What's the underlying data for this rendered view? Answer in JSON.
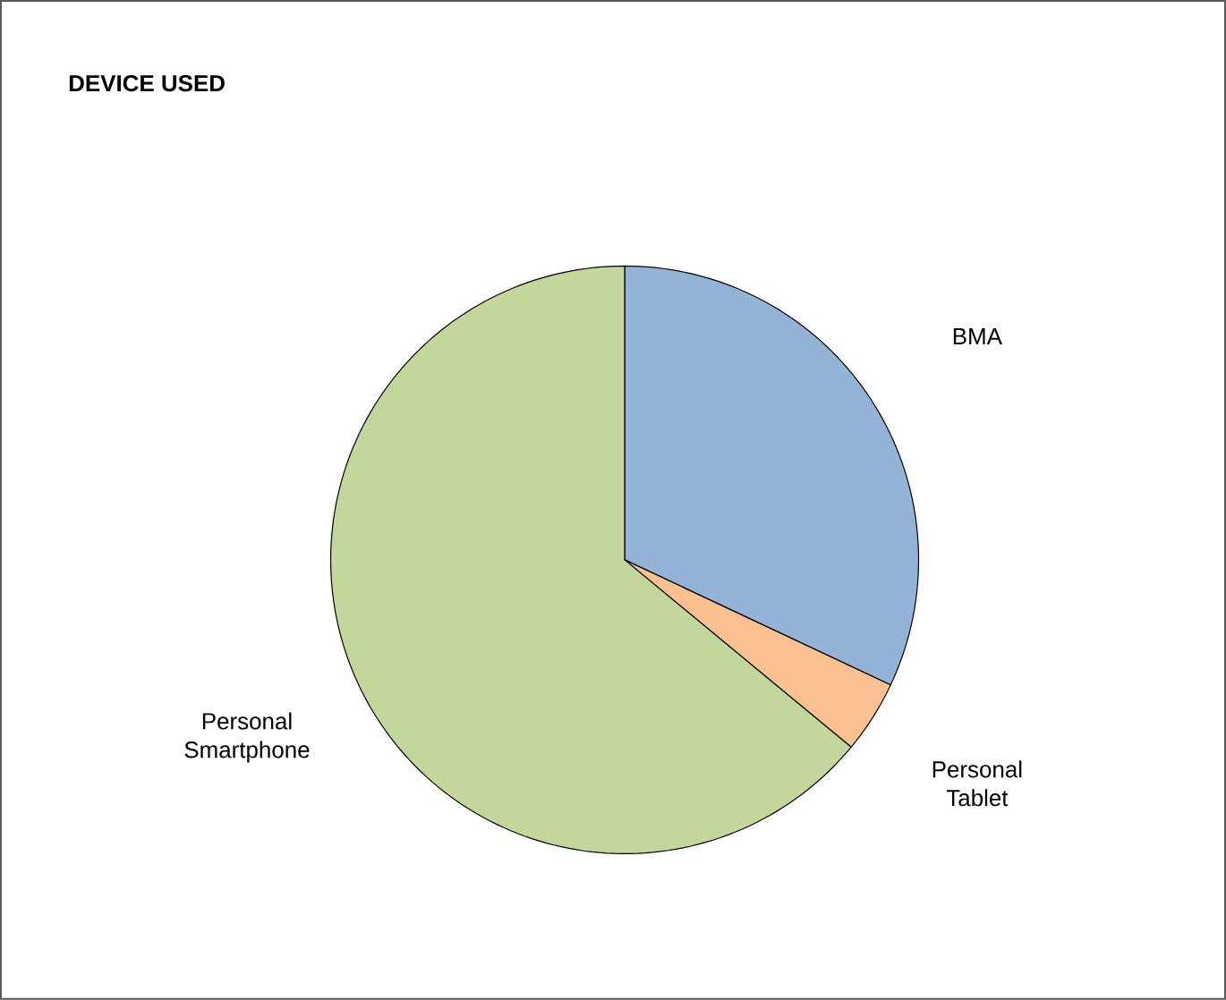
{
  "chart_data": {
    "type": "pie",
    "title": "DEVICE USED",
    "categories": [
      "BMA",
      "Personal Tablet",
      "Personal Smartphone"
    ],
    "values": [
      32,
      4,
      64
    ],
    "colors": [
      "#95b3d7",
      "#fac090",
      "#c3d69b"
    ]
  }
}
